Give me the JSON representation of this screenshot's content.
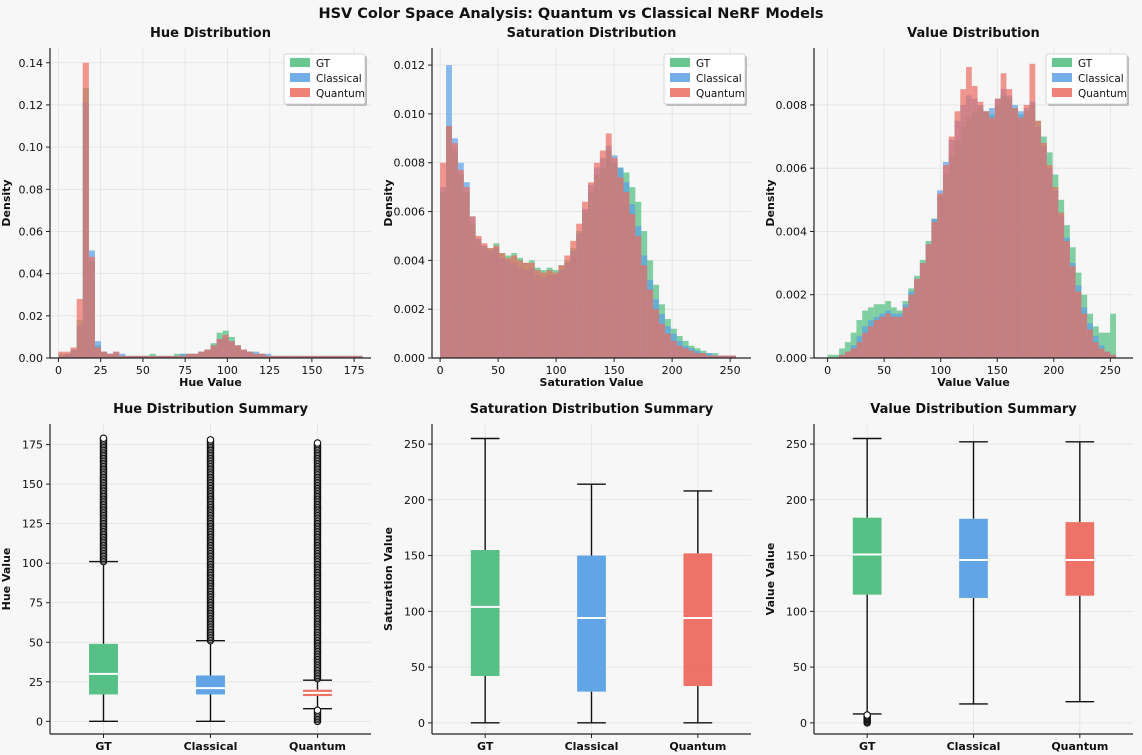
{
  "figure": {
    "title": "HSV Color Space Analysis: Quantum vs Classical NeRF Models",
    "colors": {
      "GT": "#4dbd7e",
      "Classical": "#5aa0e5",
      "Quantum": "#ec6b60",
      "background": "#f7f7f7",
      "grid": "#e3e3e3"
    },
    "legend": [
      "GT",
      "Classical",
      "Quantum"
    ]
  },
  "chart_data": [
    {
      "type": "histogram",
      "title": "Hue Distribution",
      "xlabel": "Hue Value",
      "ylabel": "Density",
      "xlim": [
        -5,
        185
      ],
      "ylim": [
        0,
        0.147
      ],
      "xticks": [
        0,
        25,
        50,
        75,
        100,
        125,
        150,
        175
      ],
      "yticks": [
        0.0,
        0.02,
        0.04,
        0.06,
        0.08,
        0.1,
        0.12,
        0.14
      ],
      "ytick_decimals": 2,
      "legend_position": "upper right",
      "bin_start": 0,
      "bin_width": 3.6,
      "series": [
        {
          "name": "GT",
          "values": [
            0.002,
            0.002,
            0.004,
            0.018,
            0.128,
            0.046,
            0.006,
            0.003,
            0.002,
            0.002,
            0.001,
            0.001,
            0.001,
            0.001,
            0.001,
            0.002,
            0.001,
            0.001,
            0.001,
            0.002,
            0.002,
            0.002,
            0.002,
            0.003,
            0.004,
            0.007,
            0.012,
            0.013,
            0.01,
            0.006,
            0.004,
            0.003,
            0.002,
            0.002,
            0.001,
            0.001,
            0.001,
            0.001,
            0.001,
            0.001,
            0.001,
            0.001,
            0.001,
            0.001,
            0.001,
            0.001,
            0.001,
            0.001,
            0.001,
            0.001
          ]
        },
        {
          "name": "Classical",
          "values": [
            0.001,
            0.002,
            0.004,
            0.015,
            0.121,
            0.051,
            0.008,
            0.003,
            0.002,
            0.003,
            0.002,
            0.001,
            0.001,
            0.001,
            0.001,
            0.001,
            0.001,
            0.001,
            0.001,
            0.001,
            0.002,
            0.002,
            0.002,
            0.003,
            0.004,
            0.006,
            0.009,
            0.01,
            0.008,
            0.006,
            0.004,
            0.003,
            0.003,
            0.002,
            0.002,
            0.001,
            0.001,
            0.001,
            0.001,
            0.001,
            0.001,
            0.001,
            0.001,
            0.001,
            0.001,
            0.001,
            0.001,
            0.001,
            0.001,
            0.001
          ]
        },
        {
          "name": "Quantum",
          "values": [
            0.003,
            0.003,
            0.005,
            0.028,
            0.14,
            0.048,
            0.005,
            0.003,
            0.002,
            0.003,
            0.001,
            0.001,
            0.001,
            0.001,
            0.001,
            0.001,
            0.001,
            0.001,
            0.001,
            0.001,
            0.001,
            0.002,
            0.002,
            0.003,
            0.004,
            0.006,
            0.009,
            0.011,
            0.008,
            0.006,
            0.004,
            0.003,
            0.002,
            0.002,
            0.001,
            0.001,
            0.001,
            0.001,
            0.001,
            0.001,
            0.001,
            0.001,
            0.001,
            0.001,
            0.001,
            0.001,
            0.001,
            0.001,
            0.001,
            0.001
          ]
        }
      ]
    },
    {
      "type": "histogram",
      "title": "Saturation Distribution",
      "xlabel": "Saturation Value",
      "ylabel": "Density",
      "xlim": [
        -7,
        268
      ],
      "ylim": [
        0,
        0.0127
      ],
      "xticks": [
        0,
        50,
        100,
        150,
        200,
        250
      ],
      "yticks": [
        0.0,
        0.002,
        0.004,
        0.006,
        0.008,
        0.01,
        0.012
      ],
      "ytick_decimals": 3,
      "legend_position": "upper right",
      "bin_start": 0,
      "bin_width": 5.1,
      "series": [
        {
          "name": "GT",
          "values": [
            0.0068,
            0.0095,
            0.0085,
            0.0075,
            0.0068,
            0.0055,
            0.0048,
            0.0046,
            0.0045,
            0.0047,
            0.0043,
            0.0042,
            0.0043,
            0.0041,
            0.0039,
            0.004,
            0.0037,
            0.0036,
            0.0037,
            0.0036,
            0.0038,
            0.004,
            0.0045,
            0.0052,
            0.006,
            0.0068,
            0.0075,
            0.0078,
            0.0085,
            0.008,
            0.0078,
            0.0076,
            0.007,
            0.0064,
            0.0052,
            0.004,
            0.003,
            0.0022,
            0.0016,
            0.0012,
            0.0009,
            0.0007,
            0.0005,
            0.0004,
            0.0003,
            0.0002,
            0.0002,
            0.0001,
            0.0001,
            0.0001
          ]
        },
        {
          "name": "Classical",
          "values": [
            0.007,
            0.012,
            0.009,
            0.008,
            0.0072,
            0.0058,
            0.0049,
            0.0046,
            0.0044,
            0.0045,
            0.0041,
            0.004,
            0.0039,
            0.0037,
            0.0036,
            0.0037,
            0.0034,
            0.0033,
            0.0034,
            0.0034,
            0.0036,
            0.0039,
            0.0044,
            0.0051,
            0.0061,
            0.0071,
            0.0078,
            0.0082,
            0.0087,
            0.0083,
            0.0078,
            0.0072,
            0.0063,
            0.0054,
            0.0042,
            0.0032,
            0.0024,
            0.0018,
            0.0013,
            0.001,
            0.0007,
            0.0005,
            0.0004,
            0.0003,
            0.0002,
            0.0002,
            0.0001,
            0.0001,
            0.0001,
            0.0001
          ]
        },
        {
          "name": "Quantum",
          "values": [
            0.008,
            0.0095,
            0.0088,
            0.0077,
            0.007,
            0.0058,
            0.005,
            0.0047,
            0.0045,
            0.0046,
            0.0043,
            0.0041,
            0.0042,
            0.004,
            0.0039,
            0.0039,
            0.0036,
            0.0035,
            0.0036,
            0.0035,
            0.0038,
            0.0042,
            0.0048,
            0.0055,
            0.0064,
            0.0072,
            0.008,
            0.0085,
            0.0092,
            0.0082,
            0.0074,
            0.0068,
            0.0059,
            0.005,
            0.0038,
            0.0028,
            0.002,
            0.0014,
            0.001,
            0.0007,
            0.0005,
            0.0004,
            0.0003,
            0.0002,
            0.0002,
            0.0001,
            0.0001,
            0.0001,
            0.0001,
            0.0001
          ]
        }
      ]
    },
    {
      "type": "histogram",
      "title": "Value Distribution",
      "xlabel": "Value Value",
      "ylabel": "Density",
      "xlim": [
        -12,
        270
      ],
      "ylim": [
        0,
        0.0098
      ],
      "xticks": [
        0,
        50,
        100,
        150,
        200,
        250
      ],
      "yticks": [
        0.0,
        0.002,
        0.004,
        0.006,
        0.008
      ],
      "ytick_decimals": 3,
      "legend_position": "upper right",
      "bin_start": 0,
      "bin_width": 5.1,
      "series": [
        {
          "name": "GT",
          "values": [
            0.0001,
            0.0001,
            0.0003,
            0.0005,
            0.0008,
            0.0012,
            0.0015,
            0.0016,
            0.0017,
            0.0017,
            0.0018,
            0.0016,
            0.0015,
            0.0018,
            0.0022,
            0.0026,
            0.0031,
            0.0037,
            0.0044,
            0.0051,
            0.0058,
            0.0064,
            0.0069,
            0.0073,
            0.0076,
            0.0078,
            0.0079,
            0.0078,
            0.0077,
            0.008,
            0.0083,
            0.0082,
            0.0079,
            0.0077,
            0.0078,
            0.008,
            0.0075,
            0.007,
            0.0065,
            0.0058,
            0.005,
            0.0042,
            0.0035,
            0.0027,
            0.002,
            0.0014,
            0.001,
            0.0008,
            0.0008,
            0.0014
          ]
        },
        {
          "name": "Classical",
          "values": [
            0.0,
            0.0,
            0.0001,
            0.0002,
            0.0004,
            0.0007,
            0.001,
            0.0012,
            0.0013,
            0.0014,
            0.0015,
            0.0014,
            0.0014,
            0.0017,
            0.0021,
            0.0025,
            0.003,
            0.0036,
            0.0044,
            0.0053,
            0.0062,
            0.0069,
            0.0075,
            0.008,
            0.0083,
            0.0082,
            0.008,
            0.0078,
            0.0079,
            0.0082,
            0.0085,
            0.0083,
            0.008,
            0.0078,
            0.0079,
            0.0081,
            0.0073,
            0.0067,
            0.006,
            0.0053,
            0.0045,
            0.0038,
            0.003,
            0.0023,
            0.0016,
            0.0011,
            0.0007,
            0.0004,
            0.0002,
            0.0001
          ]
        },
        {
          "name": "Quantum",
          "values": [
            0.0,
            0.0,
            0.0001,
            0.0002,
            0.0003,
            0.0005,
            0.0008,
            0.001,
            0.0012,
            0.0013,
            0.0014,
            0.0013,
            0.0013,
            0.0016,
            0.002,
            0.0025,
            0.003,
            0.0036,
            0.0043,
            0.0052,
            0.0061,
            0.007,
            0.0078,
            0.0085,
            0.0092,
            0.0086,
            0.0081,
            0.0078,
            0.0076,
            0.0082,
            0.009,
            0.0085,
            0.0079,
            0.0076,
            0.008,
            0.0093,
            0.0075,
            0.0068,
            0.0061,
            0.0054,
            0.0046,
            0.0037,
            0.0029,
            0.0021,
            0.0014,
            0.0009,
            0.0005,
            0.0003,
            0.0002,
            0.0001
          ]
        }
      ]
    },
    {
      "type": "box",
      "title": "Hue Distribution Summary",
      "ylabel": "Hue Value",
      "ylim": [
        -8,
        188
      ],
      "yticks": [
        0,
        25,
        50,
        75,
        100,
        125,
        150,
        175
      ],
      "ytick_decimals": 0,
      "categories": [
        "GT",
        "Classical",
        "Quantum"
      ],
      "boxes": [
        {
          "name": "GT",
          "min": 0,
          "q1": 17,
          "median": 30,
          "q3": 49,
          "max": 101,
          "outliers_range": [
            101,
            179
          ]
        },
        {
          "name": "Classical",
          "min": 0,
          "q1": 17,
          "median": 21,
          "q3": 29,
          "max": 51,
          "outliers_range": [
            51,
            178
          ]
        },
        {
          "name": "Quantum",
          "min": 8,
          "q1": 16,
          "median": 18,
          "q3": 20,
          "max": 26,
          "outliers_range": [
            27,
            176
          ],
          "low_outliers_range": [
            0,
            7
          ]
        }
      ]
    },
    {
      "type": "box",
      "title": "Saturation Distribution Summary",
      "ylabel": "Saturation Value",
      "ylim": [
        -10,
        268
      ],
      "yticks": [
        0,
        50,
        100,
        150,
        200,
        250
      ],
      "ytick_decimals": 0,
      "categories": [
        "GT",
        "Classical",
        "Quantum"
      ],
      "boxes": [
        {
          "name": "GT",
          "min": 0,
          "q1": 42,
          "median": 104,
          "q3": 155,
          "max": 255
        },
        {
          "name": "Classical",
          "min": 0,
          "q1": 28,
          "median": 94,
          "q3": 150,
          "max": 214
        },
        {
          "name": "Quantum",
          "min": 0,
          "q1": 33,
          "median": 94,
          "q3": 152,
          "max": 208
        }
      ]
    },
    {
      "type": "box",
      "title": "Value Distribution Summary",
      "ylabel": "Value Value",
      "ylim": [
        -10,
        268
      ],
      "yticks": [
        0,
        50,
        100,
        150,
        200,
        250
      ],
      "ytick_decimals": 0,
      "categories": [
        "GT",
        "Classical",
        "Quantum"
      ],
      "boxes": [
        {
          "name": "GT",
          "min": 8,
          "q1": 115,
          "median": 151,
          "q3": 184,
          "max": 255,
          "low_outliers_range": [
            0,
            7
          ]
        },
        {
          "name": "Classical",
          "min": 17,
          "q1": 112,
          "median": 146,
          "q3": 183,
          "max": 252
        },
        {
          "name": "Quantum",
          "min": 19,
          "q1": 114,
          "median": 146,
          "q3": 180,
          "max": 252
        }
      ]
    }
  ]
}
